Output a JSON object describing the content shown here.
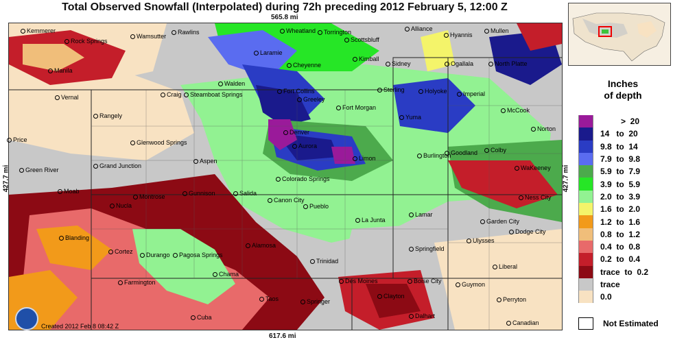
{
  "title": "Total Observed Snowfall (Interpolated) during 72h preceding 2012 February 5, 12:00 Z",
  "distances": {
    "top": "565.8 mi",
    "bottom": "617.6 mi",
    "left": "427.7 mi",
    "right": "427.7 mi"
  },
  "created": "Created 2012 Feb 8 08:42 Z",
  "legend": {
    "title_line1": "Inches",
    "title_line2": "of depth",
    "rows": [
      {
        "label": "         >  20",
        "color": "#9a1a9a"
      },
      {
        "label": "14   to  20",
        "color": "#1a1a8c"
      },
      {
        "label": "9.8  to  14",
        "color": "#2a3cc4"
      },
      {
        "label": "7.9  to  9.8",
        "color": "#5a6cf0"
      },
      {
        "label": "5.9  to  7.9",
        "color": "#4caa4c"
      },
      {
        "label": "3.9  to  5.9",
        "color": "#26e626"
      },
      {
        "label": "2.0  to  3.9",
        "color": "#92f292"
      },
      {
        "label": "1.6  to  2.0",
        "color": "#f4f46a"
      },
      {
        "label": "1.2  to  1.6",
        "color": "#f29a1a"
      },
      {
        "label": "0.8  to  1.2",
        "color": "#f0be7a"
      },
      {
        "label": "0.4  to  0.8",
        "color": "#e86a6a"
      },
      {
        "label": "0.2  to  0.4",
        "color": "#c41e2a"
      },
      {
        "label": "trace  to  0.2",
        "color": "#8c0a14"
      },
      {
        "label": "trace",
        "color": "#c8c8c8"
      },
      {
        "label": "0.0",
        "color": "#f8e2c2"
      }
    ],
    "not_estimated": "Not Estimated"
  },
  "cities": [
    {
      "name": "Kemmerer"
    },
    {
      "name": "Rock Springs"
    },
    {
      "name": "Wamsutter"
    },
    {
      "name": "Rawlins"
    },
    {
      "name": "Wheatland"
    },
    {
      "name": "Torrington"
    },
    {
      "name": "Alliance"
    },
    {
      "name": "Hyannis"
    },
    {
      "name": "Mullen"
    },
    {
      "name": "Scottsbluff"
    },
    {
      "name": "Laramie"
    },
    {
      "name": "Kimball"
    },
    {
      "name": "Sidney"
    },
    {
      "name": "Ogallala"
    },
    {
      "name": "North Platte"
    },
    {
      "name": "Cheyenne"
    },
    {
      "name": "Manila"
    },
    {
      "name": "Walden"
    },
    {
      "name": "Fort Collins"
    },
    {
      "name": "Sterling"
    },
    {
      "name": "Holyoke"
    },
    {
      "name": "Imperial"
    },
    {
      "name": "Vernal"
    },
    {
      "name": "Craig"
    },
    {
      "name": "Steamboat Springs"
    },
    {
      "name": "Greeley"
    },
    {
      "name": "Fort Morgan"
    },
    {
      "name": "McCook"
    },
    {
      "name": "Rangely"
    },
    {
      "name": "Yuma"
    },
    {
      "name": "Norton"
    },
    {
      "name": "Denver"
    },
    {
      "name": "Price"
    },
    {
      "name": "Glenwood Springs"
    },
    {
      "name": "Aurora"
    },
    {
      "name": "Goodland"
    },
    {
      "name": "Colby"
    },
    {
      "name": "Burlington"
    },
    {
      "name": "Limon"
    },
    {
      "name": "Green River"
    },
    {
      "name": "Grand Junction"
    },
    {
      "name": "Aspen"
    },
    {
      "name": "WaKeeney"
    },
    {
      "name": "Colorado Springs"
    },
    {
      "name": "Moab"
    },
    {
      "name": "Gunnison"
    },
    {
      "name": "Salida"
    },
    {
      "name": "Montrose"
    },
    {
      "name": "Canon City"
    },
    {
      "name": "Ness City"
    },
    {
      "name": "Nucla"
    },
    {
      "name": "Pueblo"
    },
    {
      "name": "Lamar"
    },
    {
      "name": "La Junta"
    },
    {
      "name": "Garden City"
    },
    {
      "name": "Dodge City"
    },
    {
      "name": "Blanding"
    },
    {
      "name": "Ulysses"
    },
    {
      "name": "Cortez"
    },
    {
      "name": "Alamosa"
    },
    {
      "name": "Springfield"
    },
    {
      "name": "Durango"
    },
    {
      "name": "Pagosa Springs"
    },
    {
      "name": "Trinidad"
    },
    {
      "name": "Liberal"
    },
    {
      "name": "Farmington"
    },
    {
      "name": "Chama"
    },
    {
      "name": "Des Moines"
    },
    {
      "name": "Boise City"
    },
    {
      "name": "Guymon"
    },
    {
      "name": "Clayton"
    },
    {
      "name": "Taos"
    },
    {
      "name": "Springer"
    },
    {
      "name": "Perryton"
    },
    {
      "name": "Cuba"
    },
    {
      "name": "Dalhart"
    },
    {
      "name": "Canadian"
    }
  ]
}
